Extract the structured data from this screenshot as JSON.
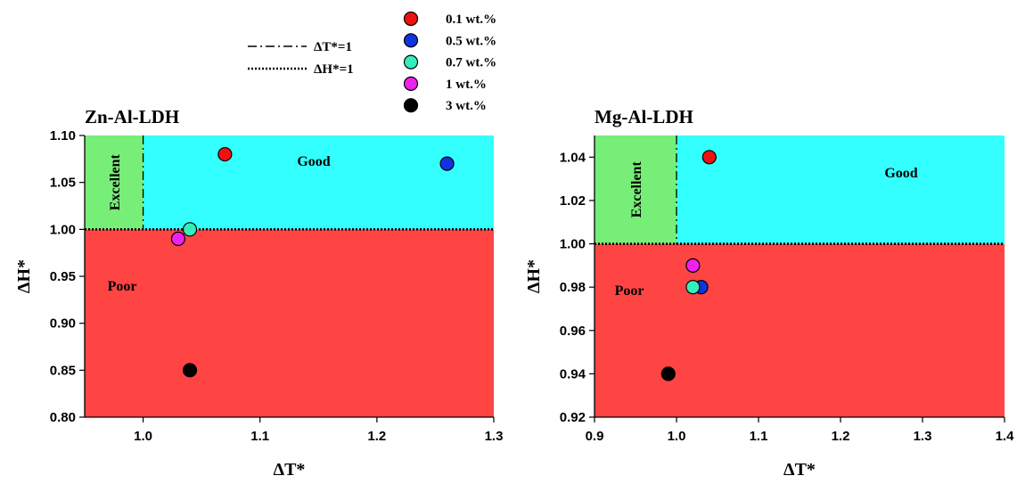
{
  "legend": {
    "lines": [
      {
        "label": "ΔT*=1",
        "style": "dashdot"
      },
      {
        "label": "ΔH*=1",
        "style": "dotted"
      }
    ],
    "markers": [
      {
        "label": "0.1 wt.%",
        "color": "#ee1111"
      },
      {
        "label": "0.5 wt.%",
        "color": "#1133dd"
      },
      {
        "label": "0.7 wt.%",
        "color": "#33eebb"
      },
      {
        "label": "1 wt.%",
        "color": "#ee22ee"
      },
      {
        "label": "3 wt.%",
        "color": "#000000"
      }
    ]
  },
  "colors": {
    "poor": "#ff4444",
    "good": "#33ffff",
    "excellent": "#77ee77"
  },
  "chart_data": [
    {
      "type": "scatter",
      "title": "Zn-Al-LDH",
      "xlabel": "ΔT*",
      "ylabel": "ΔH*",
      "xlim": [
        0.95,
        1.3
      ],
      "ylim": [
        0.8,
        1.1
      ],
      "xticks": [
        "1.0",
        "1.1",
        "1.2",
        "1.3"
      ],
      "xtick_values": [
        1.0,
        1.1,
        1.2,
        1.3
      ],
      "yticks": [
        "0.80",
        "0.85",
        "0.90",
        "0.95",
        "1.00",
        "1.05",
        "1.10"
      ],
      "ytick_values": [
        0.8,
        0.85,
        0.9,
        0.95,
        1.0,
        1.05,
        1.1
      ],
      "regions": [
        {
          "label": "Excellent",
          "x": [
            0.95,
            1.0
          ],
          "y": [
            1.0,
            1.1
          ],
          "color": "excellent"
        },
        {
          "label": "Good",
          "x": [
            1.0,
            1.3
          ],
          "y": [
            1.0,
            1.1
          ],
          "color": "good"
        },
        {
          "label": "Poor",
          "x": [
            0.95,
            1.3
          ],
          "y": [
            0.8,
            1.0
          ],
          "color": "poor"
        }
      ],
      "series": [
        {
          "name": "0.1 wt.%",
          "x": 1.07,
          "y": 1.08
        },
        {
          "name": "0.5 wt.%",
          "x": 1.26,
          "y": 1.07
        },
        {
          "name": "0.7 wt.%",
          "x": 1.04,
          "y": 1.0
        },
        {
          "name": "1 wt.%",
          "x": 1.03,
          "y": 0.99
        },
        {
          "name": "3 wt.%",
          "x": 1.04,
          "y": 0.85
        }
      ]
    },
    {
      "type": "scatter",
      "title": "Mg-Al-LDH",
      "xlabel": "ΔT*",
      "ylabel": "ΔH*",
      "xlim": [
        0.9,
        1.4
      ],
      "ylim": [
        0.92,
        1.05
      ],
      "xticks": [
        "0.9",
        "1.0",
        "1.1",
        "1.2",
        "1.3",
        "1.4"
      ],
      "xtick_values": [
        0.9,
        1.0,
        1.1,
        1.2,
        1.3,
        1.4
      ],
      "yticks": [
        "0.92",
        "0.94",
        "0.96",
        "0.98",
        "1.00",
        "1.02",
        "1.04"
      ],
      "ytick_values": [
        0.92,
        0.94,
        0.96,
        0.98,
        1.0,
        1.02,
        1.04
      ],
      "regions": [
        {
          "label": "Excellent",
          "x": [
            0.9,
            1.0
          ],
          "y": [
            1.0,
            1.05
          ],
          "color": "excellent"
        },
        {
          "label": "Good",
          "x": [
            1.0,
            1.4
          ],
          "y": [
            1.0,
            1.05
          ],
          "color": "good"
        },
        {
          "label": "Poor",
          "x": [
            0.9,
            1.4
          ],
          "y": [
            0.92,
            1.0
          ],
          "color": "poor"
        }
      ],
      "series": [
        {
          "name": "0.1 wt.%",
          "x": 1.04,
          "y": 1.04
        },
        {
          "name": "0.5 wt.%",
          "x": 1.03,
          "y": 0.98
        },
        {
          "name": "0.7 wt.%",
          "x": 1.02,
          "y": 0.98
        },
        {
          "name": "1 wt.%",
          "x": 1.02,
          "y": 0.99
        },
        {
          "name": "3 wt.%",
          "x": 0.99,
          "y": 0.94
        }
      ]
    }
  ]
}
